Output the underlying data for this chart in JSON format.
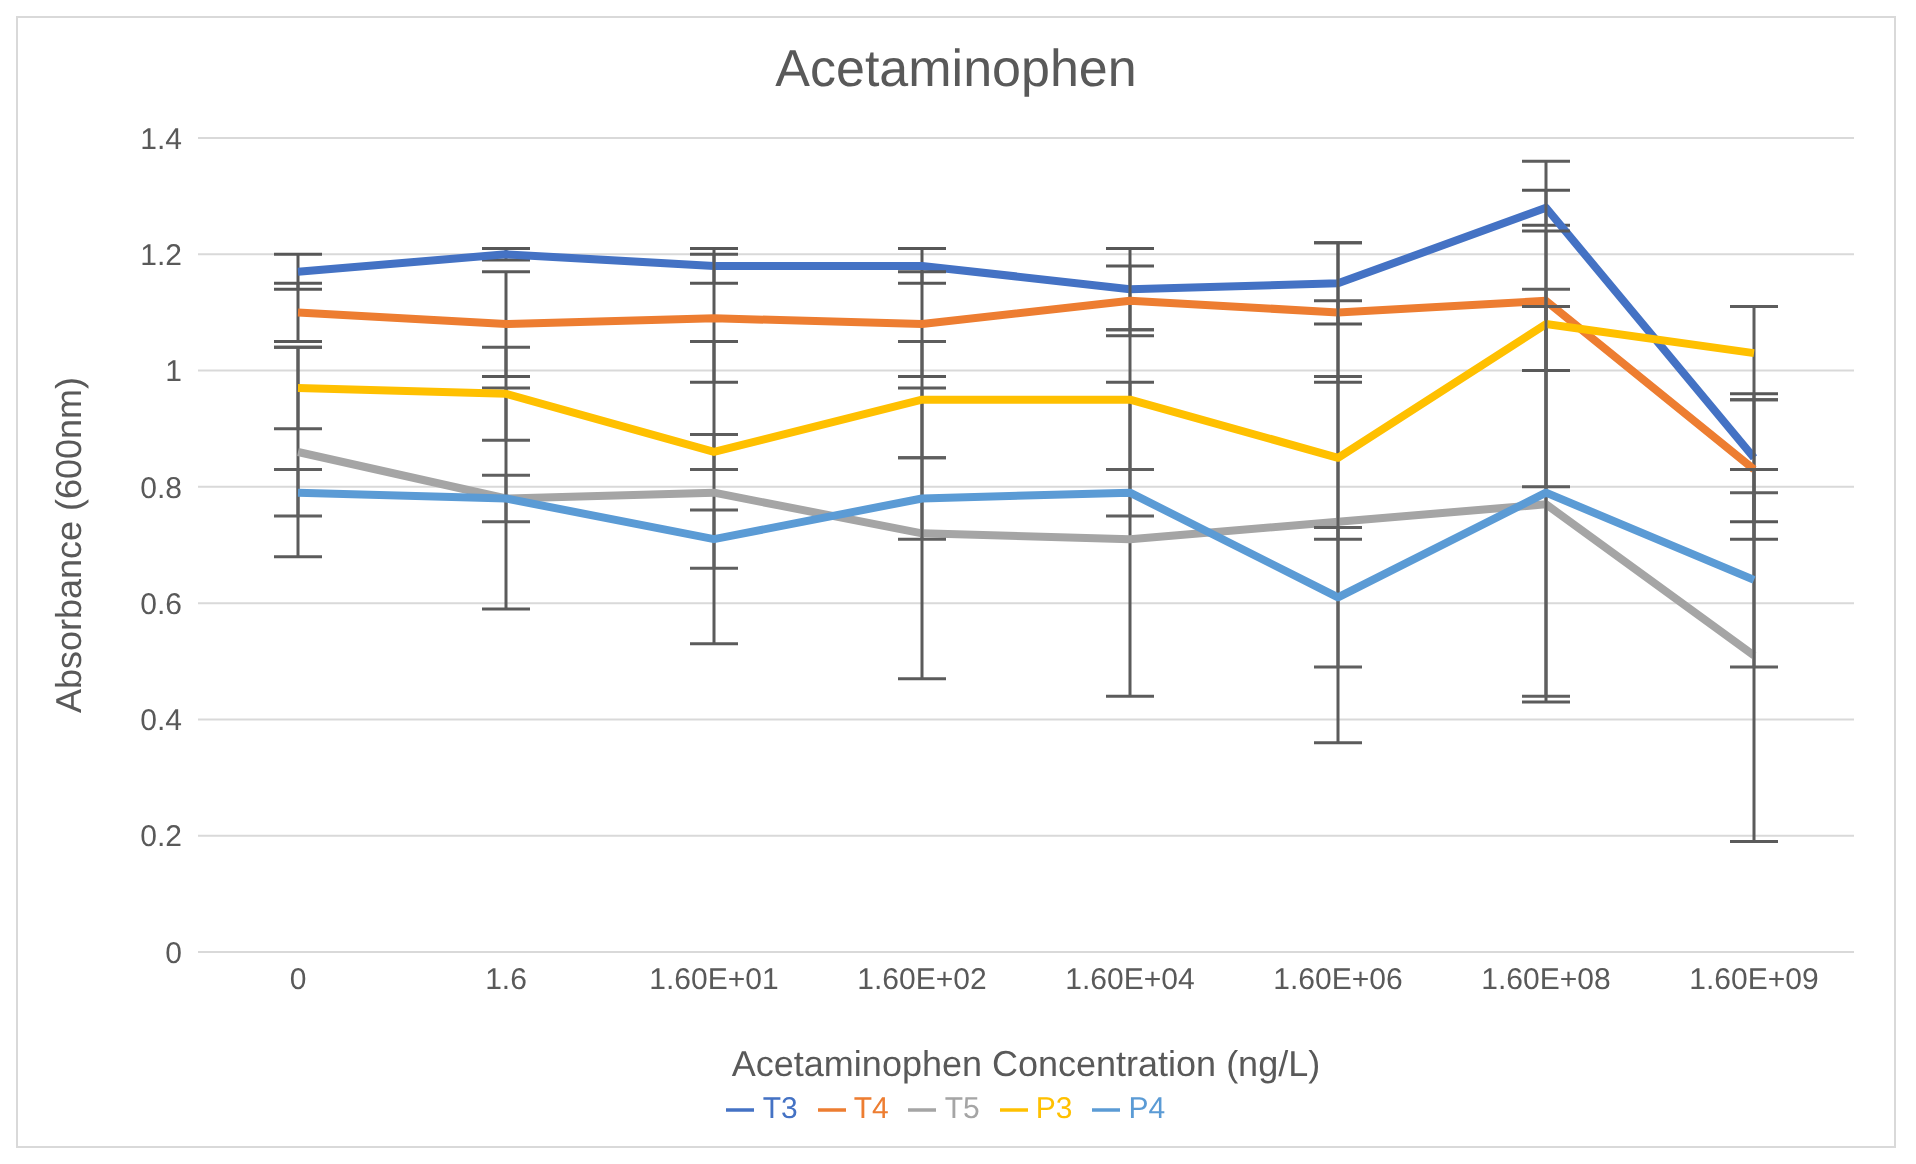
{
  "chart_data": {
    "type": "line",
    "title": "Acetaminophen",
    "xlabel": "Acetaminophen Concentration (ng/L)",
    "ylabel": "Absorbance (600nm)",
    "categories": [
      "0",
      "1.6",
      "1.60E+01",
      "1.60E+02",
      "1.60E+04",
      "1.60E+06",
      "1.60E+08",
      "1.60E+09"
    ],
    "ylim": [
      0,
      1.4
    ],
    "yticks": [
      0,
      0.2,
      0.4,
      0.6,
      0.8,
      1,
      1.2,
      1.4
    ],
    "grid": "y",
    "legend": "bottom",
    "marker": "none",
    "line_style": "solid",
    "series": [
      {
        "name": "T3",
        "color": "#4472c4",
        "values": [
          1.17,
          1.2,
          1.18,
          1.18,
          1.14,
          1.15,
          1.28,
          0.85
        ],
        "errors": [
          0.03,
          0.01,
          0.03,
          0.03,
          0.07,
          0.07,
          0.03,
          0.11
        ]
      },
      {
        "name": "T4",
        "color": "#ed7d31",
        "values": [
          1.1,
          1.08,
          1.09,
          1.08,
          1.12,
          1.1,
          1.12,
          0.83
        ],
        "errors": [
          0.05,
          0.09,
          0.11,
          0.09,
          0.06,
          0.12,
          0.12,
          0.12
        ]
      },
      {
        "name": "T5",
        "color": "#a5a5a5",
        "values": [
          0.86,
          0.78,
          0.79,
          0.72,
          0.71,
          0.74,
          0.77,
          0.51
        ],
        "errors": [
          0.18,
          0.19,
          0.26,
          0.25,
          0.27,
          0.38,
          0.34,
          0.32
        ]
      },
      {
        "name": "P3",
        "color": "#ffc000",
        "values": [
          0.97,
          0.96,
          0.86,
          0.95,
          0.95,
          0.85,
          1.08,
          1.03
        ],
        "errors": [
          0.07,
          0.08,
          0.03,
          0.1,
          0.12,
          0.14,
          0.28,
          0.08
        ]
      },
      {
        "name": "P4",
        "color": "#5b9bd5",
        "values": [
          0.79,
          0.78,
          0.71,
          0.78,
          0.79,
          0.61,
          0.79,
          0.64
        ],
        "errors": [
          0.04,
          0.04,
          0.05,
          0.07,
          0.04,
          0.12,
          0.35,
          0.15
        ]
      }
    ]
  }
}
